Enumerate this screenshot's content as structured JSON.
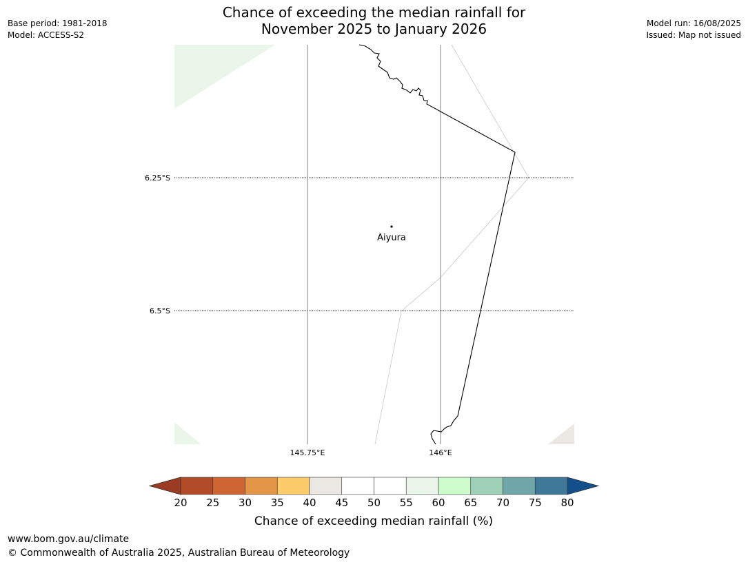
{
  "header": {
    "title_line1": "Chance of exceeding the median rainfall for",
    "title_line2": "November 2025 to January 2026",
    "base_period": "Base period: 1981-2018",
    "model": "Model: ACCESS-S2",
    "model_run": "Model run: 16/08/2025",
    "issued": "Issued: Map not issued"
  },
  "map": {
    "lat_labels": [
      "6.25°S",
      "6.5°S"
    ],
    "lon_labels": [
      "145.75°E",
      "146°E"
    ],
    "place": {
      "name": "Aiyura"
    }
  },
  "colorbar": {
    "title": "Chance of exceeding median rainfall (%)",
    "ticks": [
      "20",
      "25",
      "30",
      "35",
      "40",
      "45",
      "50",
      "55",
      "60",
      "65",
      "70",
      "75",
      "80"
    ],
    "under_color": "#9b3b22",
    "over_color": "#134f8a",
    "colors": [
      "#b24b27",
      "#cf6631",
      "#e39646",
      "#fccc6a",
      "#ebe7e3",
      "#ffffff",
      "#ffffff",
      "#eaf6ea",
      "#ccfccc",
      "#9fd1b9",
      "#70a6a8",
      "#40789a"
    ]
  },
  "footer": {
    "url": "www.bom.gov.au/climate",
    "copyright": "© Commonwealth of Australia 2025, Australian Bureau of Meteorology"
  }
}
